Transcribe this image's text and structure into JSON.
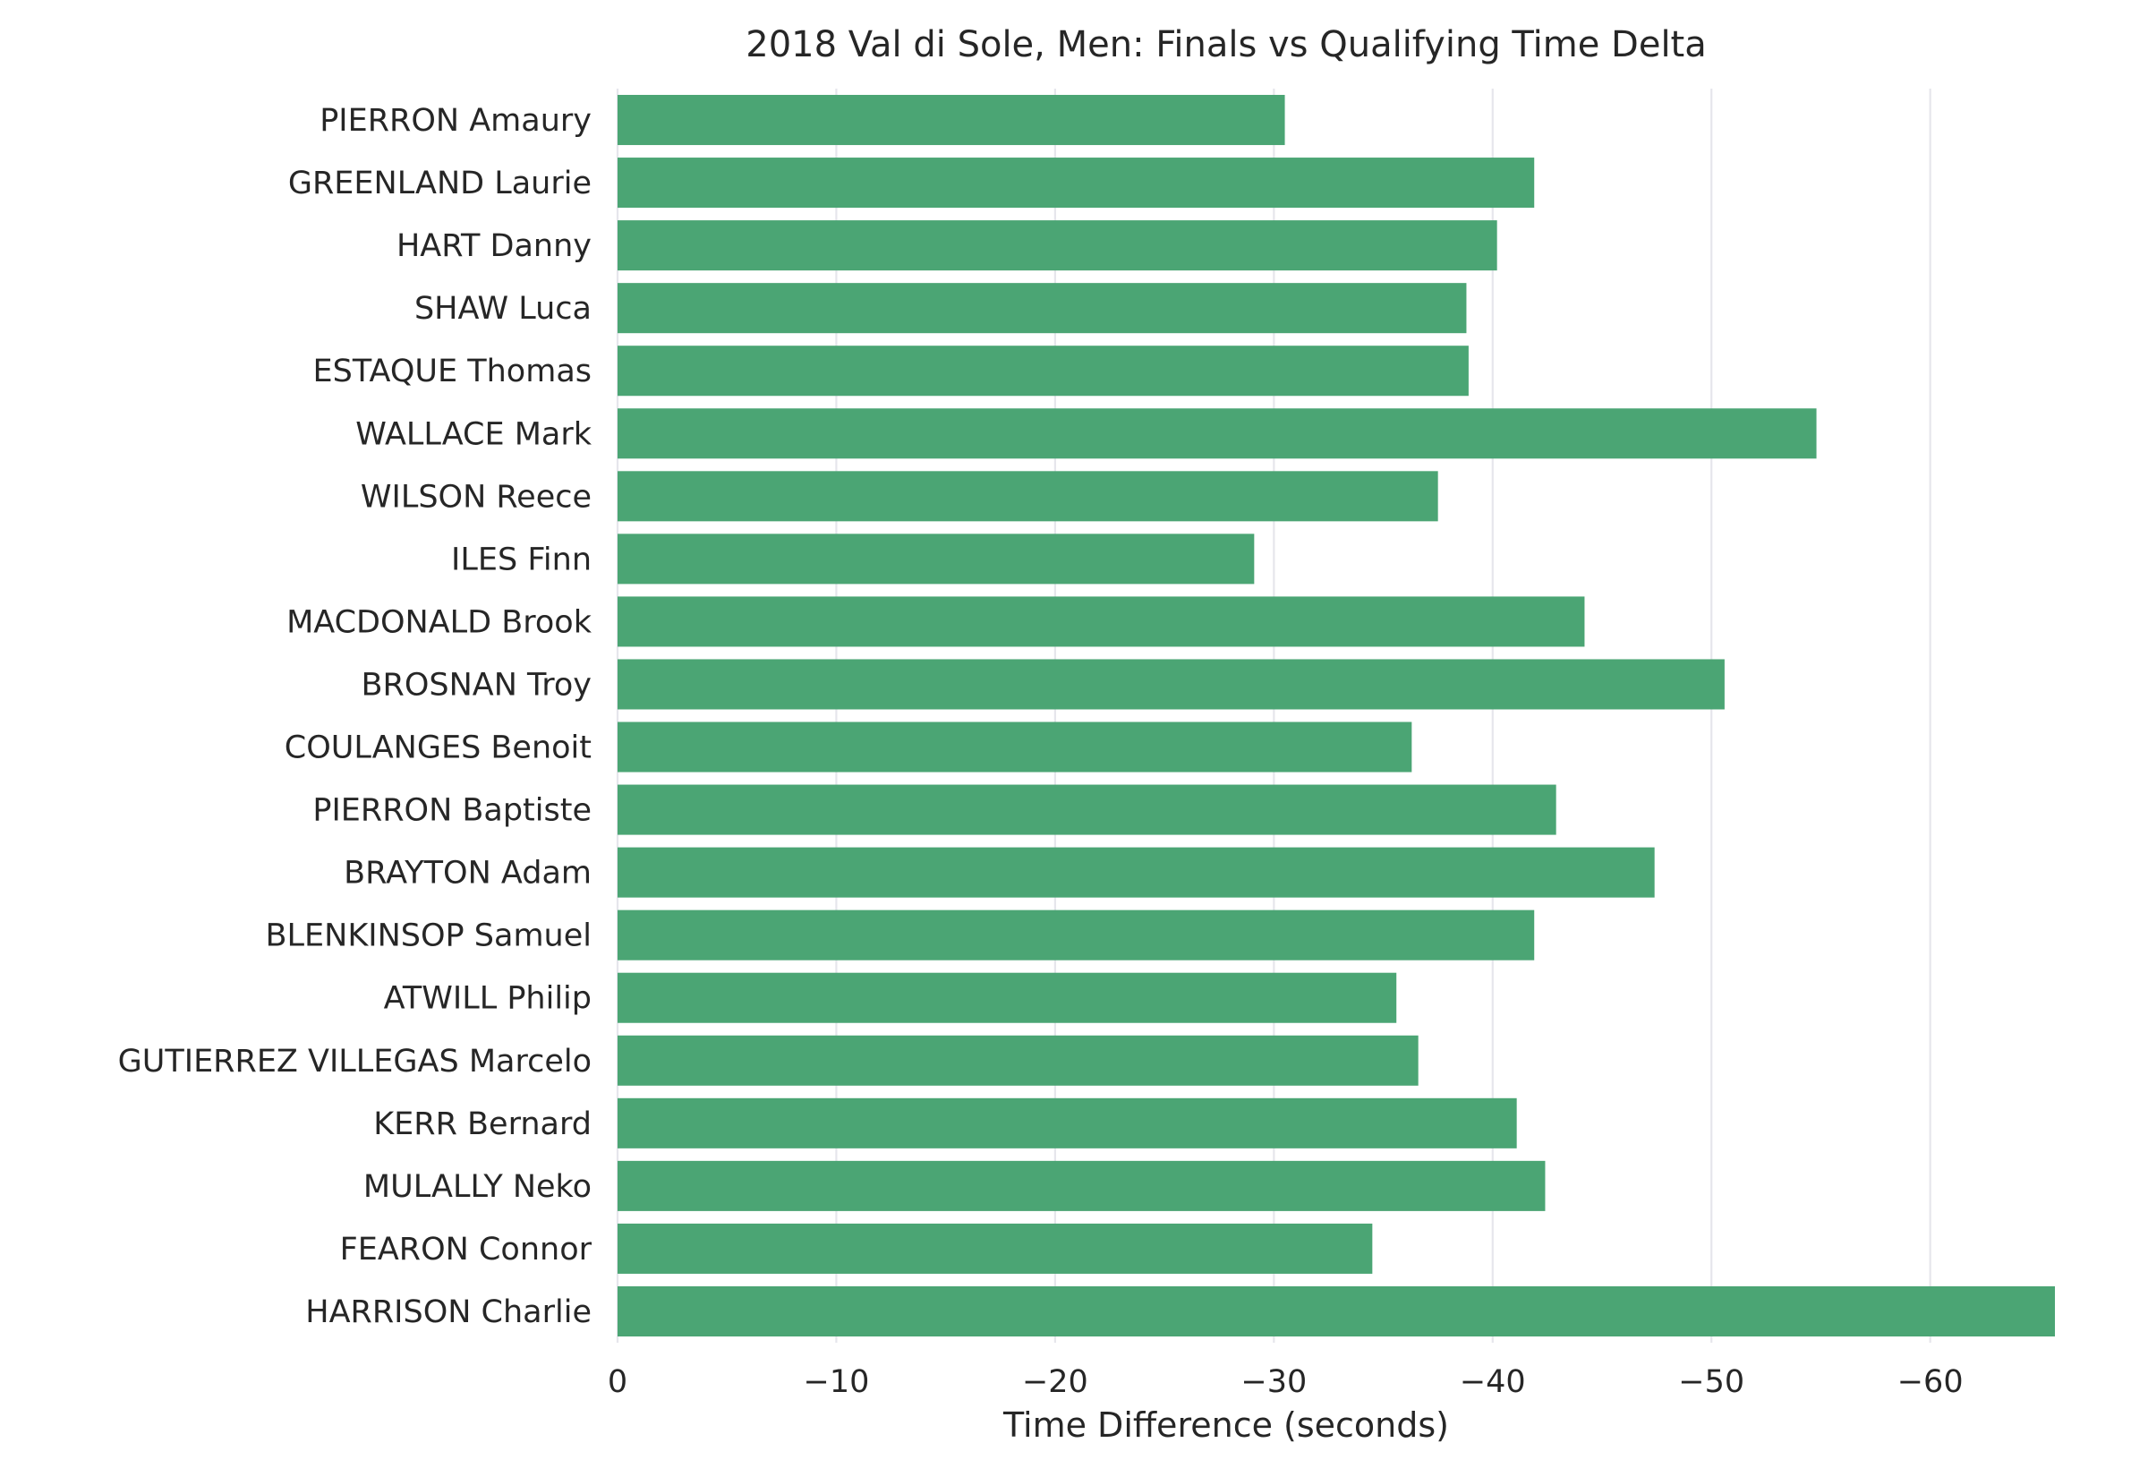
{
  "colors": {
    "bar": "#4ba574",
    "grid": "#e6e6ec",
    "text": "#262626",
    "background": "#ffffff"
  },
  "chart_data": {
    "type": "bar",
    "orientation": "horizontal",
    "title": "2018 Val di Sole, Men: Finals vs Qualifying Time Delta",
    "xlabel": "Time Difference (seconds)",
    "ylabel": "",
    "xlim": [
      0,
      -65.7
    ],
    "x_axis_inverted": true,
    "xticks": [
      0,
      -10,
      -20,
      -30,
      -40,
      -50,
      -60
    ],
    "xtick_labels": [
      "0",
      "−10",
      "−20",
      "−30",
      "−40",
      "−50",
      "−60"
    ],
    "grid": "x-major",
    "legend": "none",
    "categories": [
      "PIERRON Amaury",
      "GREENLAND Laurie",
      "HART Danny",
      "SHAW Luca",
      "ESTAQUE Thomas",
      "WALLACE Mark",
      "WILSON Reece",
      "ILES Finn",
      "MACDONALD Brook",
      "BROSNAN Troy",
      "COULANGES Benoit",
      "PIERRON Baptiste",
      "BRAYTON Adam",
      "BLENKINSOP Samuel",
      "ATWILL Philip",
      "GUTIERREZ VILLEGAS Marcelo",
      "KERR Bernard",
      "MULALLY Neko",
      "FEARON Connor",
      "HARRISON Charlie"
    ],
    "values": [
      -30.5,
      -41.9,
      -40.2,
      -38.8,
      -38.9,
      -54.8,
      -37.5,
      -29.1,
      -44.2,
      -50.6,
      -36.3,
      -42.9,
      -47.4,
      -41.9,
      -35.6,
      -36.6,
      -41.1,
      -42.4,
      -34.5,
      -65.7
    ]
  }
}
